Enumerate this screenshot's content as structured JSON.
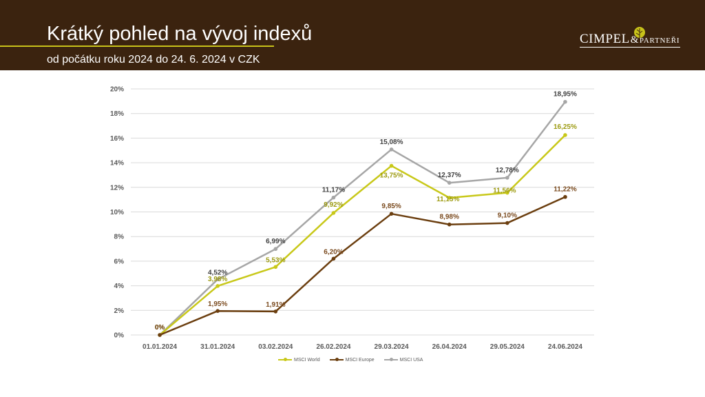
{
  "header": {
    "title": "Krátký pohled na vývoj indexů",
    "subtitle": "od počátku roku 2024  do 24. 6. 2024 v CZK",
    "logo_main": "CIMPEL",
    "logo_amp": "&",
    "logo_small": "PARTNEŘI",
    "logo_icon": "tree-icon"
  },
  "colors": {
    "header_bg": "#3b230f",
    "accent": "#c8c21a",
    "world": "#c8c819",
    "europe": "#6b3e0f",
    "usa": "#a6a6a6"
  },
  "chart_data": {
    "type": "line",
    "categories": [
      "01.01.2024",
      "31.01.2024",
      "03.02.2024",
      "26.02.2024",
      "29.03.2024",
      "26.04.2024",
      "29.05.2024",
      "24.06.2024"
    ],
    "ylim": [
      0,
      20
    ],
    "yticks": [
      "0%",
      "2%",
      "4%",
      "6%",
      "8%",
      "10%",
      "12%",
      "14%",
      "16%",
      "18%",
      "20%"
    ],
    "grid": true,
    "legend": "bottom",
    "series": [
      {
        "name": "MSCI World",
        "values": [
          0,
          3.98,
          5.53,
          9.92,
          13.75,
          11.15,
          11.56,
          16.25
        ],
        "labels": [
          "0%",
          "3,98%",
          "5,53%",
          "9,92%",
          "13,75%",
          "11,15%",
          "11,56%",
          "16,25%"
        ],
        "color": "#c8c819",
        "label_color": "#9c9a10"
      },
      {
        "name": "MSCI Europe",
        "values": [
          0,
          1.95,
          1.91,
          6.2,
          9.85,
          8.98,
          9.1,
          11.22
        ],
        "labels": [
          "0%",
          "1,95%",
          "1,91%",
          "6,20%",
          "9,85%",
          "8,98%",
          "9,10%",
          "11,22%"
        ],
        "color": "#6b3e0f",
        "label_color": "#7a4a1e"
      },
      {
        "name": "MSCI USA",
        "values": [
          0,
          4.52,
          6.99,
          11.17,
          15.08,
          12.37,
          12.78,
          18.95
        ],
        "labels": [
          "0%",
          "4,52%",
          "6,99%",
          "11,17%",
          "15,08%",
          "12,37%",
          "12,78%",
          "18,95%"
        ],
        "color": "#a6a6a6",
        "label_color": "#404040"
      }
    ]
  }
}
